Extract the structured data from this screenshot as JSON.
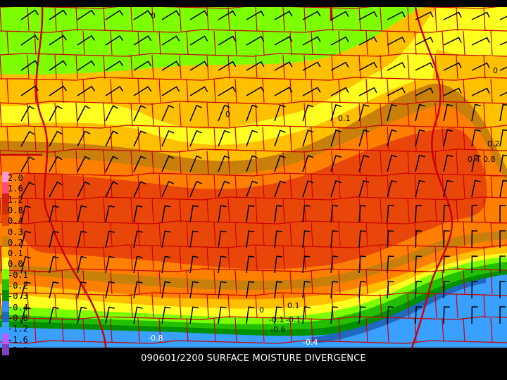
{
  "title": "090601/2200 SURFACE MOISTURE DIVERGENCE",
  "legend": {
    "entries": [
      {
        "label": "2.0",
        "color": "#ff99cc"
      },
      {
        "label": "1.6",
        "color": "#ff4f75"
      },
      {
        "label": "1.2",
        "color": "#d8201a"
      },
      {
        "label": "0.8",
        "color": "#cc3000"
      },
      {
        "label": "0.4",
        "color": "#e94709"
      },
      {
        "label": "0.3",
        "color": "#ff8000"
      },
      {
        "label": "0.2",
        "color": "#c8800a"
      },
      {
        "label": "0.1",
        "color": "#ffc000"
      },
      {
        "label": "0.0",
        "color": "#ffff20"
      },
      {
        "label": "-0.1",
        "color": "#7cff00"
      },
      {
        "label": "-0.2",
        "color": "#22c000"
      },
      {
        "label": "-0.3",
        "color": "#009000"
      },
      {
        "label": "-0.4",
        "color": "#3a86ff"
      },
      {
        "label": "-0.8",
        "color": "#1f68c0"
      },
      {
        "label": "-1.2",
        "color": "#3aa0ff"
      },
      {
        "label": "-1.6",
        "color": "#b060ff"
      },
      {
        "label": "-2.0",
        "color": "#8040c0"
      }
    ]
  },
  "contour_labels": [
    {
      "text": "0",
      "tone": "dark"
    },
    {
      "text": "0",
      "tone": "dark"
    },
    {
      "text": "0.1",
      "tone": "dark"
    },
    {
      "text": "0.2",
      "tone": "dark"
    },
    {
      "text": "0",
      "tone": "dark"
    },
    {
      "text": "0.4",
      "tone": "dark"
    },
    {
      "text": "0.8",
      "tone": "dark"
    },
    {
      "text": "0",
      "tone": "dark"
    },
    {
      "text": "-0.1",
      "tone": "dark"
    },
    {
      "text": "-0.1",
      "tone": "dark"
    },
    {
      "text": "0.1",
      "tone": "dark"
    },
    {
      "text": "-0.6",
      "tone": "dark"
    },
    {
      "text": "-0.8",
      "tone": "light"
    },
    {
      "text": "-0.4",
      "tone": "light"
    }
  ],
  "colors": {
    "county_lines": "#cc0000",
    "wind_barbs": "#000000",
    "background": "#000000"
  }
}
